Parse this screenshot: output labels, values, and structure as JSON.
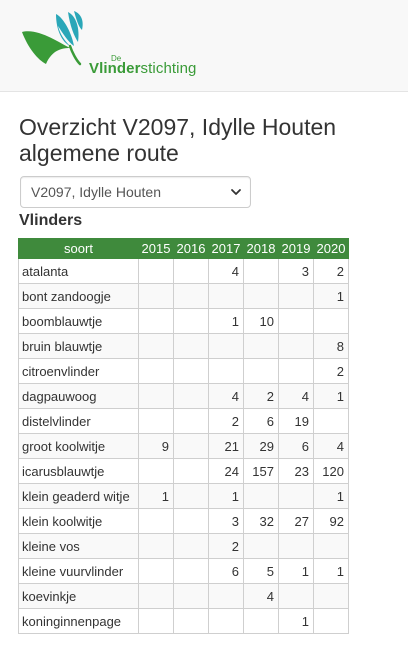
{
  "logo": {
    "prefix": "De",
    "word_bold": "Vlinder",
    "word_rest": "stichting",
    "brand_green": "#3a9b38",
    "brand_teal": "#2aa7b8"
  },
  "page": {
    "title": "Overzicht V2097, Idylle Houten algemene route"
  },
  "route_select": {
    "value": "V2097, Idylle Houten"
  },
  "section": {
    "title": "Vlinders"
  },
  "table": {
    "header_color": "#3f8a3c",
    "columns": [
      "soort",
      "2015",
      "2016",
      "2017",
      "2018",
      "2019",
      "2020"
    ],
    "rows": [
      [
        "atalanta",
        "",
        "",
        "4",
        "",
        "3",
        "2"
      ],
      [
        "bont zandoogje",
        "",
        "",
        "",
        "",
        "",
        "1"
      ],
      [
        "boomblauwtje",
        "",
        "",
        "1",
        "10",
        "",
        ""
      ],
      [
        "bruin blauwtje",
        "",
        "",
        "",
        "",
        "",
        "8"
      ],
      [
        "citroenvlinder",
        "",
        "",
        "",
        "",
        "",
        "2"
      ],
      [
        "dagpauwoog",
        "",
        "",
        "4",
        "2",
        "4",
        "1"
      ],
      [
        "distelvlinder",
        "",
        "",
        "2",
        "6",
        "19",
        ""
      ],
      [
        "groot koolwitje",
        "9",
        "",
        "21",
        "29",
        "6",
        "4"
      ],
      [
        "icarusblauwtje",
        "",
        "",
        "24",
        "157",
        "23",
        "120"
      ],
      [
        "klein geaderd witje",
        "1",
        "",
        "1",
        "",
        "",
        "1"
      ],
      [
        "klein koolwitje",
        "",
        "",
        "3",
        "32",
        "27",
        "92"
      ],
      [
        "kleine vos",
        "",
        "",
        "2",
        "",
        "",
        ""
      ],
      [
        "kleine vuurvlinder",
        "",
        "",
        "6",
        "5",
        "1",
        "1"
      ],
      [
        "koevinkje",
        "",
        "",
        "",
        "4",
        "",
        ""
      ],
      [
        "koninginnenpage",
        "",
        "",
        "",
        "",
        "1",
        ""
      ]
    ]
  }
}
